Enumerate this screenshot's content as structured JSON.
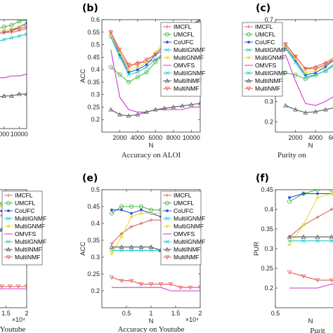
{
  "legend_labels": [
    "IMCFL",
    "UMCFL",
    "CoUFC",
    "MultiIGNMF",
    "MultiGNMF",
    "OMVFS",
    "MultiIGNMF",
    "MultiINMF",
    "MultiNMF"
  ],
  "colors": {
    "IMCFL": "#e06060",
    "UMCFL": "#4db84d",
    "CoUFC": "#2e4fd6",
    "MultiIGNMF": "#22c8c8",
    "MultiGNMF": "#e6e13a",
    "OMVFS": "#d238d2",
    "MultiINMF": "#555555",
    "MultiNMF": "#e45c5c"
  },
  "chart_data": [
    {
      "type": "line",
      "letter": "",
      "caption": "",
      "xlabel": "",
      "ylabel": "",
      "xlim": [
        0,
        11000
      ],
      "ylim": [
        0,
        0.6
      ],
      "xticks": [
        "000",
        "10000"
      ],
      "yticks": [],
      "x": [
        1000,
        2000,
        3000,
        4000,
        5000,
        6000,
        7000,
        8000,
        9000,
        10000,
        11000
      ],
      "series": [
        {
          "name": "IMCFL",
          "values": [
            0.47,
            0.48,
            0.49,
            0.5,
            0.5,
            0.51,
            0.52,
            0.53,
            0.53,
            0.54,
            0.55
          ]
        },
        {
          "name": "UMCFL",
          "values": [
            0.5,
            0.51,
            0.52,
            0.53,
            0.53,
            0.54,
            0.55,
            0.56,
            0.57,
            0.59,
            0.6
          ]
        },
        {
          "name": "CoUFC",
          "values": [
            0.44,
            0.45,
            0.46,
            0.48,
            0.49,
            0.5,
            0.52,
            0.53,
            0.54,
            0.56,
            0.58
          ]
        },
        {
          "name": "MultiIGNMF",
          "values": [
            0.42,
            0.43,
            0.44,
            0.45,
            0.46,
            0.47,
            0.48,
            0.49,
            0.5,
            0.51,
            0.52
          ]
        },
        {
          "name": "MultiGNMF",
          "values": [
            0.47,
            0.48,
            0.49,
            0.5,
            0.51,
            0.52,
            0.53,
            0.54,
            0.55,
            0.56,
            0.57
          ]
        },
        {
          "name": "OMVFS",
          "values": [
            0.26,
            0.26,
            0.27,
            0.27,
            0.27,
            0.27,
            0.28,
            0.28,
            0.29,
            0.29,
            0.3
          ]
        },
        {
          "name": "MultiINMF",
          "values": [
            0.14,
            0.15,
            0.15,
            0.16,
            0.16,
            0.17,
            0.17,
            0.18,
            0.18,
            0.19,
            0.19
          ]
        },
        {
          "name": "MultiNMF",
          "values": [
            0.46,
            0.47,
            0.48,
            0.49,
            0.5,
            0.51,
            0.52,
            0.53,
            0.54,
            0.55,
            0.56
          ]
        }
      ]
    },
    {
      "type": "line",
      "letter": "(b)",
      "caption": "Accuracy on ALOI",
      "xlabel": "N",
      "ylabel": "ACC",
      "xlim": [
        0,
        11000
      ],
      "ylim": [
        0.15,
        0.6
      ],
      "xticks": [
        "2000",
        "4000",
        "6000",
        "8000",
        "10000"
      ],
      "yticks": [
        "0.2",
        "0.25",
        "0.3",
        "0.35",
        "0.4",
        "0.45",
        "0.5",
        "0.55",
        "0.6"
      ],
      "x": [
        1000,
        2000,
        3000,
        4000,
        5000,
        6000,
        7000,
        8000,
        9000,
        10000,
        11000
      ],
      "series": [
        {
          "name": "IMCFL",
          "values": [
            0.55,
            0.47,
            0.41,
            0.43,
            0.43,
            0.44,
            0.45,
            0.46,
            0.47,
            0.48,
            0.49
          ]
        },
        {
          "name": "UMCFL",
          "values": [
            0.41,
            0.38,
            0.35,
            0.37,
            0.39,
            0.43,
            0.47,
            0.51,
            0.54,
            0.57,
            0.6
          ]
        },
        {
          "name": "CoUFC",
          "values": [
            0.54,
            0.46,
            0.39,
            0.4,
            0.42,
            0.46,
            0.5,
            0.52,
            0.55,
            0.58,
            0.6
          ]
        },
        {
          "name": "MultiIGNMF",
          "values": [
            0.53,
            0.45,
            0.38,
            0.39,
            0.41,
            0.44,
            0.47,
            0.5,
            0.52,
            0.55,
            0.57
          ]
        },
        {
          "name": "MultiGNMF",
          "values": [
            0.54,
            0.47,
            0.4,
            0.41,
            0.43,
            0.47,
            0.51,
            0.54,
            0.56,
            0.58,
            0.59
          ]
        },
        {
          "name": "OMVFS",
          "values": [
            0.48,
            0.29,
            0.24,
            0.23,
            0.23,
            0.24,
            0.24,
            0.24,
            0.24,
            0.25,
            0.25
          ]
        },
        {
          "name": "MultiINMF",
          "values": [
            0.24,
            0.22,
            0.215,
            0.22,
            0.23,
            0.24,
            0.245,
            0.25,
            0.255,
            0.26,
            0.265
          ]
        },
        {
          "name": "MultiNMF",
          "values": [
            0.55,
            0.48,
            0.42,
            0.42,
            0.44,
            0.46,
            0.48,
            0.51,
            0.53,
            0.55,
            0.57
          ]
        }
      ]
    },
    {
      "type": "line",
      "letter": "(c)",
      "caption": "Purity on",
      "xlabel": "N",
      "ylabel": "PUR",
      "xlim": [
        0,
        7000
      ],
      "ylim": [
        0.15,
        0.7
      ],
      "xticks": [
        "2000",
        "4000",
        "6000"
      ],
      "yticks": [
        "0.2",
        "0.3",
        "0.4",
        "0.5",
        "0.6",
        "0.7"
      ],
      "x": [
        1000,
        2000,
        3000,
        4000,
        5000,
        6000,
        7000
      ],
      "series": [
        {
          "name": "IMCFL",
          "values": [
            0.58,
            0.52,
            0.46,
            0.47,
            0.49,
            0.52,
            0.55
          ]
        },
        {
          "name": "UMCFL",
          "values": [
            0.44,
            0.43,
            0.41,
            0.43,
            0.45,
            0.49,
            0.53
          ]
        },
        {
          "name": "CoUFC",
          "values": [
            0.57,
            0.5,
            0.43,
            0.44,
            0.47,
            0.51,
            0.55
          ]
        },
        {
          "name": "MultiIGNMF",
          "values": [
            0.56,
            0.49,
            0.42,
            0.43,
            0.45,
            0.48,
            0.52
          ]
        },
        {
          "name": "MultiGNMF",
          "values": [
            0.57,
            0.51,
            0.44,
            0.45,
            0.48,
            0.52,
            0.56
          ]
        },
        {
          "name": "OMVFS",
          "values": [
            0.53,
            0.4,
            0.29,
            0.28,
            0.3,
            0.33,
            0.35
          ]
        },
        {
          "name": "MultiINMF",
          "values": [
            0.28,
            0.26,
            0.245,
            0.25,
            0.26,
            0.27,
            0.28
          ]
        },
        {
          "name": "MultiNMF",
          "values": [
            0.58,
            0.52,
            0.46,
            0.46,
            0.48,
            0.51,
            0.54
          ]
        }
      ]
    },
    {
      "type": "line",
      "letter": "",
      "caption": "Youtube",
      "xlabel": "",
      "ylabel": "",
      "xlim": [
        0,
        20000
      ],
      "ylim": [
        0,
        0.5
      ],
      "xticks": [
        "0.5",
        "1",
        "1.5",
        "2"
      ],
      "yticks": [],
      "x_multiplier": "×10⁴",
      "x": [
        2000,
        4000,
        6000,
        8000,
        10000,
        12000,
        14000,
        16000,
        18000,
        20000
      ],
      "series": [
        {
          "name": "IMCFL",
          "values": [
            0.37,
            0.38,
            0.38,
            0.39,
            0.39,
            0.39,
            0.39,
            0.39,
            0.39,
            0.39
          ]
        },
        {
          "name": "UMCFL",
          "values": [
            0.44,
            0.44,
            0.44,
            0.44,
            0.44,
            0.44,
            0.44,
            0.43,
            0.42,
            0.41
          ]
        },
        {
          "name": "CoUFC",
          "values": [
            0.43,
            0.43,
            0.42,
            0.42,
            0.42,
            0.41,
            0.41,
            0.4,
            0.38,
            0.34
          ]
        },
        {
          "name": "MultiIGNMF",
          "values": [
            0.33,
            0.33,
            0.33,
            0.33,
            0.33,
            0.33,
            0.33,
            0.33,
            0.33,
            0.33
          ]
        },
        {
          "name": "MultiGNMF",
          "values": [
            0.44,
            0.44,
            0.44,
            0.43,
            0.43,
            0.43,
            0.43,
            0.43,
            0.42,
            0.42
          ]
        },
        {
          "name": "OMVFS",
          "values": [
            0.08,
            0.08,
            0.08,
            0.08,
            0.08,
            0.08,
            0.08,
            0.08,
            0.08,
            0.08
          ]
        },
        {
          "name": "MultiINMF",
          "values": [
            0.35,
            0.34,
            0.34,
            0.33,
            0.33,
            0.33,
            0.33,
            0.33,
            0.33,
            0.33
          ]
        },
        {
          "name": "MultiNMF",
          "values": [
            0.1,
            0.1,
            0.09,
            0.09,
            0.09,
            0.09,
            0.09,
            0.09,
            0.09,
            0.09
          ]
        }
      ]
    },
    {
      "type": "line",
      "letter": "(e)",
      "caption": "Accuracy on Youtube",
      "xlabel": "N",
      "ylabel": "ACC",
      "xlim": [
        0,
        20000
      ],
      "ylim": [
        0.15,
        0.5
      ],
      "xticks": [
        "0.5",
        "1",
        "1.5",
        "2"
      ],
      "yticks": [
        "0.2",
        "0.25",
        "0.3",
        "0.35",
        "0.4",
        "0.45",
        "0.5"
      ],
      "x_multiplier": "×10⁴",
      "x": [
        2000,
        4000,
        6000,
        8000,
        10000,
        12000,
        14000,
        16000,
        18000,
        20000
      ],
      "series": [
        {
          "name": "IMCFL",
          "values": [
            0.34,
            0.37,
            0.39,
            0.4,
            0.41,
            0.41,
            0.4,
            0.4,
            0.39,
            0.39
          ]
        },
        {
          "name": "UMCFL",
          "values": [
            0.43,
            0.45,
            0.45,
            0.45,
            0.44,
            0.44,
            0.43,
            0.43,
            0.41,
            0.39
          ]
        },
        {
          "name": "CoUFC",
          "values": [
            0.44,
            0.44,
            0.43,
            0.44,
            0.43,
            0.42,
            0.42,
            0.41,
            0.4,
            0.34
          ]
        },
        {
          "name": "MultiIGNMF",
          "values": [
            0.32,
            0.32,
            0.32,
            0.32,
            0.32,
            0.32,
            0.32,
            0.32,
            0.32,
            0.32
          ]
        },
        {
          "name": "MultiGNMF",
          "values": [
            0.31,
            0.36,
            0.42,
            0.43,
            0.43,
            0.43,
            0.43,
            0.43,
            0.42,
            0.42
          ]
        },
        {
          "name": "OMVFS",
          "values": [
            0.21,
            0.21,
            0.21,
            0.21,
            0.21,
            0.21,
            0.2,
            0.2,
            0.2,
            0.2
          ]
        },
        {
          "name": "MultiINMF",
          "values": [
            0.33,
            0.33,
            0.33,
            0.33,
            0.33,
            0.32,
            0.32,
            0.31,
            0.31,
            0.3
          ]
        },
        {
          "name": "MultiNMF",
          "values": [
            0.24,
            0.23,
            0.23,
            0.22,
            0.22,
            0.22,
            0.22,
            0.21,
            0.21,
            0.21
          ]
        }
      ]
    },
    {
      "type": "line",
      "letter": "(f)",
      "caption": "Purit",
      "xlabel": "N",
      "ylabel": "PUR",
      "xlim": [
        0,
        10000
      ],
      "ylim": [
        0.15,
        0.45
      ],
      "xticks": [
        "0.5"
      ],
      "yticks": [
        "0.2",
        "0.25",
        "0.3",
        "0.35",
        "0.4",
        "0.45"
      ],
      "x": [
        2000,
        4000,
        6000,
        8000,
        10000
      ],
      "series": [
        {
          "name": "IMCFL",
          "values": [
            0.33,
            0.36,
            0.38,
            0.4,
            0.41
          ]
        },
        {
          "name": "UMCFL",
          "values": [
            0.42,
            0.44,
            0.45,
            0.45,
            0.45
          ]
        },
        {
          "name": "CoUFC",
          "values": [
            0.43,
            0.44,
            0.44,
            0.44,
            0.44
          ]
        },
        {
          "name": "MultiIGNMF",
          "values": [
            0.32,
            0.32,
            0.32,
            0.32,
            0.33
          ]
        },
        {
          "name": "MultiGNMF",
          "values": [
            0.31,
            0.36,
            0.43,
            0.44,
            0.44
          ]
        },
        {
          "name": "OMVFS",
          "values": [
            0.2,
            0.2,
            0.2,
            0.21,
            0.21
          ]
        },
        {
          "name": "MultiINMF",
          "values": [
            0.33,
            0.33,
            0.33,
            0.33,
            0.33
          ]
        },
        {
          "name": "MultiNMF",
          "values": [
            0.24,
            0.23,
            0.22,
            0.22,
            0.22
          ]
        }
      ]
    }
  ]
}
